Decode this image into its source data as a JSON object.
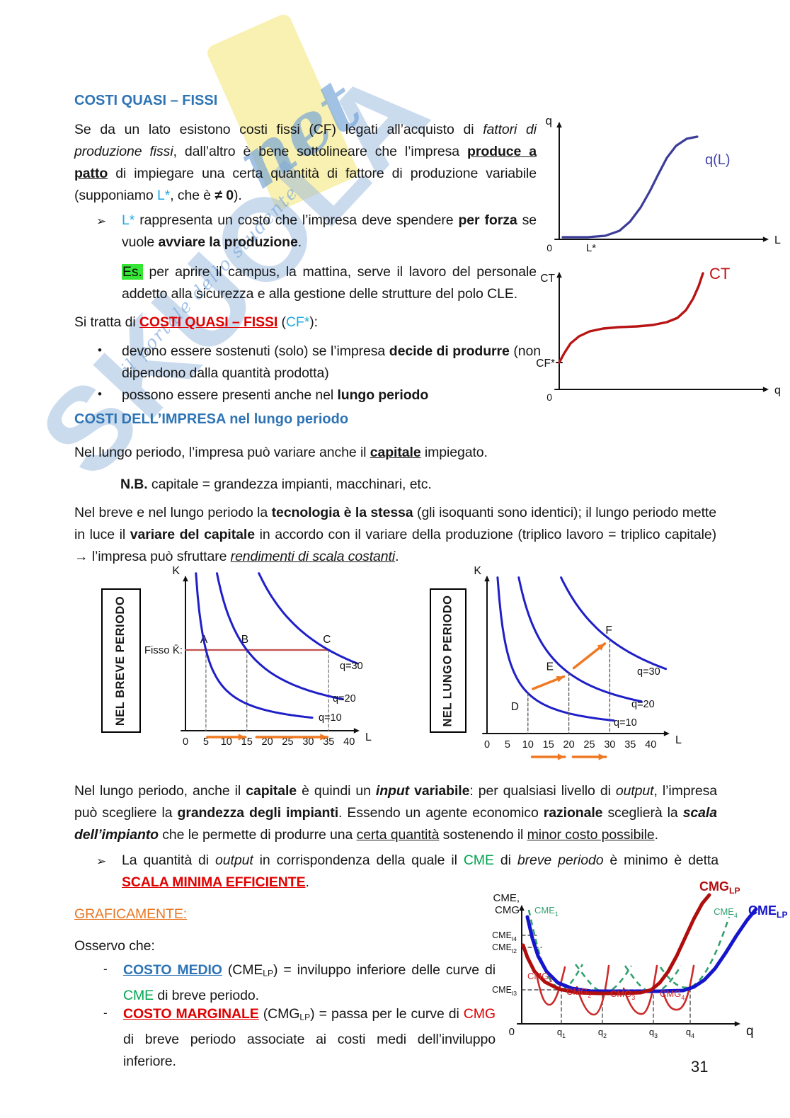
{
  "page": {
    "number": "31"
  },
  "watermark": {
    "brand": "SKUOLA",
    "net": "net",
    "tagline": "il portale dello studente"
  },
  "content": {
    "arrow_marker": "➢",
    "dot_marker": "•",
    "dash_marker": "-",
    "h1": "COSTI QUASI – FISSI",
    "p1": [
      {
        "t": "Se da un lato esistono costi fissi (CF) legati all’acquisto di ",
        "c": ""
      },
      {
        "t": "fattori di produzione fissi",
        "c": "i"
      },
      {
        "t": ", dall’altro è bene sottolineare che l’impresa ",
        "c": ""
      },
      {
        "t": "produce a patto",
        "c": "b u"
      },
      {
        "t": " di impiegare una certa quantità di fattore di produzione variabile (supponiamo ",
        "c": ""
      },
      {
        "t": "L*",
        "c": "cyan"
      },
      {
        "t": ", che è ",
        "c": ""
      },
      {
        "t": "≠ 0",
        "c": "b"
      },
      {
        "t": ").",
        "c": ""
      }
    ],
    "b1": [
      {
        "t": "L*",
        "c": "cyan"
      },
      {
        "t": " rappresenta un costo che l’impresa deve spendere ",
        "c": ""
      },
      {
        "t": "per forza",
        "c": "b"
      },
      {
        "t": " se vuole ",
        "c": ""
      },
      {
        "t": "avviare la produzione",
        "c": "b"
      },
      {
        "t": ".",
        "c": ""
      }
    ],
    "es": [
      {
        "t": "Es.",
        "c": "hl"
      },
      {
        "t": " per aprire il campus, la mattina, serve il lavoro del personale addetto alla sicurezza e alla gestione delle strutture del polo CLE.",
        "c": ""
      }
    ],
    "sitratta": [
      {
        "t": "Si tratta di ",
        "c": ""
      },
      {
        "t": "COSTI QUASI – FISSI",
        "c": "red b u"
      },
      {
        "t": " (",
        "c": ""
      },
      {
        "t": "CF*",
        "c": "cyan"
      },
      {
        "t": "):",
        "c": ""
      }
    ],
    "list1_item1": [
      {
        "t": "devono essere sostenuti (solo) se l’impresa ",
        "c": ""
      },
      {
        "t": "decide di produrre",
        "c": "b"
      },
      {
        "t": " (non dipendono dalla quantità prodotta)",
        "c": ""
      }
    ],
    "list1_item2": [
      {
        "t": "possono essere presenti anche nel ",
        "c": ""
      },
      {
        "t": "lungo periodo",
        "c": "b"
      }
    ],
    "h2": "COSTI DELL’IMPRESA nel lungo periodo",
    "p2": [
      {
        "t": "Nel lungo periodo, l’impresa può variare anche il ",
        "c": ""
      },
      {
        "t": "capitale",
        "c": "b u"
      },
      {
        "t": " impiegato.",
        "c": ""
      }
    ],
    "nb": [
      {
        "t": "N.B.",
        "c": "b"
      },
      {
        "t": " capitale = grandezza impianti, macchinari, etc.",
        "c": ""
      }
    ],
    "p3": [
      {
        "t": "Nel breve e nel lungo periodo la ",
        "c": ""
      },
      {
        "t": "tecnologia è la stessa",
        "c": "b"
      },
      {
        "t": " (gli isoquanti sono identici); il lungo periodo mette in luce il ",
        "c": ""
      },
      {
        "t": "variare del capitale",
        "c": "b"
      },
      {
        "t": " in accordo con il variare della produzione (triplico lavoro = triplico capitale) ",
        "c": ""
      },
      {
        "t": "→",
        "c": "b"
      },
      {
        "t": " l’impresa può sfruttare ",
        "c": ""
      },
      {
        "t": "rendimenti di scala costanti",
        "c": "i u"
      },
      {
        "t": ".",
        "c": ""
      }
    ],
    "p4": [
      {
        "t": "Nel lungo periodo, anche il ",
        "c": ""
      },
      {
        "t": "capitale",
        "c": "b"
      },
      {
        "t": " è quindi un ",
        "c": ""
      },
      {
        "t": "input",
        "c": "b i"
      },
      {
        "t": " variabile",
        "c": "b"
      },
      {
        "t": ": per qualsiasi livello di ",
        "c": ""
      },
      {
        "t": "output",
        "c": "i"
      },
      {
        "t": ", l’impresa può scegliere la ",
        "c": ""
      },
      {
        "t": "grandezza degli impianti",
        "c": "b"
      },
      {
        "t": ". Essendo un agente economico ",
        "c": ""
      },
      {
        "t": "razionale",
        "c": "b"
      },
      {
        "t": " sceglierà la ",
        "c": ""
      },
      {
        "t": "scala dell’impianto",
        "c": "b i"
      },
      {
        "t": " che le permette di produrre una ",
        "c": ""
      },
      {
        "t": "certa quantità",
        "c": "u"
      },
      {
        "t": " sostenendo il ",
        "c": ""
      },
      {
        "t": "minor costo possibile",
        "c": "u"
      },
      {
        "t": ".",
        "c": ""
      }
    ],
    "b2": [
      {
        "t": "La quantità di ",
        "c": ""
      },
      {
        "t": "output",
        "c": "i"
      },
      {
        "t": " in corrispondenza della quale il ",
        "c": ""
      },
      {
        "t": "CME",
        "c": "green"
      },
      {
        "t": " di ",
        "c": ""
      },
      {
        "t": "breve periodo",
        "c": "i"
      },
      {
        "t": " è minimo è detta ",
        "c": ""
      },
      {
        "t": "SCALA MINIMA EFFICIENTE",
        "c": "red b u"
      },
      {
        "t": ".",
        "c": ""
      }
    ],
    "graf": [
      {
        "t": "GRAFICAMENTE:",
        "c": "orange u"
      }
    ],
    "osservo": "Osservo che:",
    "dash1": [
      {
        "t": "COSTO MEDIO",
        "c": "blue b u"
      },
      {
        "t": " (CME",
        "c": ""
      },
      {
        "t": "LP",
        "c": "sb"
      },
      {
        "t": ") = inviluppo inferiore delle curve di ",
        "c": ""
      },
      {
        "t": "CME",
        "c": "green"
      },
      {
        "t": " di breve periodo.",
        "c": ""
      }
    ],
    "dash2": [
      {
        "t": "COSTO MARGINALE",
        "c": "red b u"
      },
      {
        "t": " (CMG",
        "c": ""
      },
      {
        "t": "LP",
        "c": "sb"
      },
      {
        "t": ") = passa per le curve di ",
        "c": ""
      },
      {
        "t": "CMG",
        "c": "red"
      },
      {
        "t": " di breve periodo associate ai costi medi dell’inviluppo inferiore.",
        "c": ""
      }
    ]
  },
  "chart_data": [
    {
      "id": "qL",
      "type": "line",
      "ylabel": "q",
      "xlabel": "L",
      "origin": "0",
      "xticks": [
        "L*"
      ],
      "series": [
        {
          "name": "q(L)",
          "shape": "s-curve rising from zero after L*",
          "color": "#3C3C99"
        }
      ]
    },
    {
      "id": "CT",
      "type": "line",
      "ylabel": "CT",
      "xlabel": "q",
      "origin": "0",
      "yticks": [
        "CF*"
      ],
      "series": [
        {
          "name": "CT",
          "shape": "starts at CF*, rises, plateaus, then rises steeply",
          "color": "#B81414"
        }
      ]
    },
    {
      "id": "breve",
      "type": "line",
      "title": "NEL BREVE PERIODO",
      "ylabel": "K",
      "xlabel": "L",
      "xticks": [
        0,
        5,
        10,
        15,
        20,
        25,
        30,
        35,
        40
      ],
      "fixed_k_label": "Fisso K̄:",
      "fixed_k": 6,
      "isoquants": [
        {
          "label": "q=10",
          "k_const": 30
        },
        {
          "label": "q=20",
          "k_const": 90
        },
        {
          "label": "q=30",
          "k_const": 210
        }
      ],
      "points": [
        {
          "label": "A",
          "L": 5,
          "K": 6
        },
        {
          "label": "B",
          "L": 15,
          "K": 6
        },
        {
          "label": "C",
          "L": 35,
          "K": 6
        }
      ],
      "arrows_below_axis": [
        [
          5,
          15
        ],
        [
          17,
          35
        ]
      ]
    },
    {
      "id": "lungo",
      "type": "line",
      "title": "NEL LUNGO PERIODO",
      "ylabel": "K",
      "xlabel": "L",
      "xticks": [
        0,
        5,
        10,
        15,
        20,
        25,
        30,
        35,
        40
      ],
      "isoquants": [
        {
          "label": "q=10",
          "k_const": 30
        },
        {
          "label": "q=20",
          "k_const": 90
        },
        {
          "label": "q=30",
          "k_const": 210
        }
      ],
      "points": [
        {
          "label": "D",
          "L": 10,
          "K": 3
        },
        {
          "label": "E",
          "L": 20,
          "K": 4.5
        },
        {
          "label": "F",
          "L": 30,
          "K": 7
        }
      ],
      "expansion_arrows": [
        [
          "D",
          "E"
        ],
        [
          "E",
          "F"
        ]
      ],
      "arrows_below_axis": [
        [
          11,
          19
        ],
        [
          21,
          29
        ]
      ]
    },
    {
      "id": "cme",
      "type": "line",
      "ylabel_lines": [
        "CME,",
        "CMG"
      ],
      "xlabel": "q",
      "origin": "0",
      "xticks": [
        {
          "b": "q",
          "s": "1"
        },
        {
          "b": "q",
          "s": "2"
        },
        {
          "b": "q",
          "s": "3"
        },
        {
          "b": "q",
          "s": "4"
        }
      ],
      "ylevels": [
        {
          "b": "CME",
          "s": "I4"
        },
        {
          "b": "CME",
          "s": "I2"
        },
        {
          "b": "CME",
          "s": "I3"
        }
      ],
      "curve_labels": {
        "cme_lp": {
          "b": "CME",
          "s": "LP"
        },
        "cmg_lp": {
          "b": "CMG",
          "s": "LP"
        },
        "cme1": {
          "b": "CME",
          "s": "1"
        },
        "cme4": {
          "b": "CME",
          "s": "4"
        },
        "cmg1": {
          "b": "CMG",
          "s": "1"
        },
        "cmg2": {
          "b": "CMG",
          "s": "2"
        },
        "cmg3": {
          "b": "CMG",
          "s": "3"
        },
        "cmg4": {
          "b": "CMG",
          "s": "4"
        }
      },
      "colors": {
        "cme_lp": "#1515CC",
        "cmg_lp": "#B00E0E",
        "cme_sr": "#33A06F",
        "cmg_sr": "#CC2A2A"
      },
      "description": "CME_LP is the lower envelope of the short-run CME curves; CMG_LP passes through the short-run CMG curves."
    }
  ]
}
